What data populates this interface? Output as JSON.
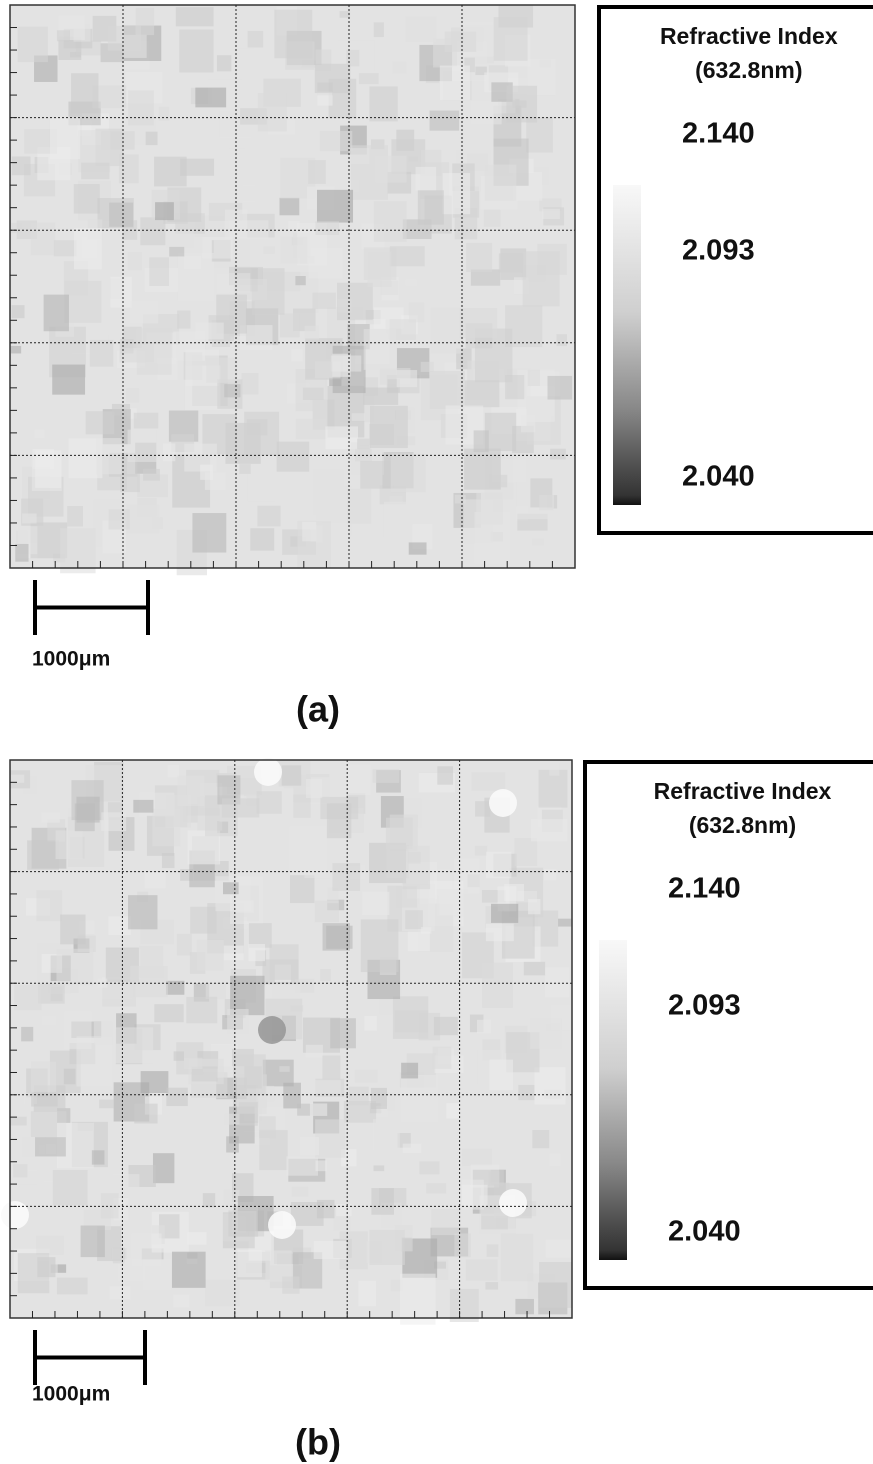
{
  "panels": [
    {
      "label": "(a)",
      "legend": {
        "title": "Refractive Index",
        "subtitle": "(632.8nm)",
        "labels": [
          "2.140",
          "2.093",
          "2.040"
        ]
      },
      "scale_bar": "1000μm"
    },
    {
      "label": "(b)",
      "legend": {
        "title": "Refractive Index",
        "subtitle": "(632.8nm)",
        "labels": [
          "2.140",
          "2.093",
          "2.040"
        ]
      },
      "scale_bar": "1000μm"
    }
  ]
}
